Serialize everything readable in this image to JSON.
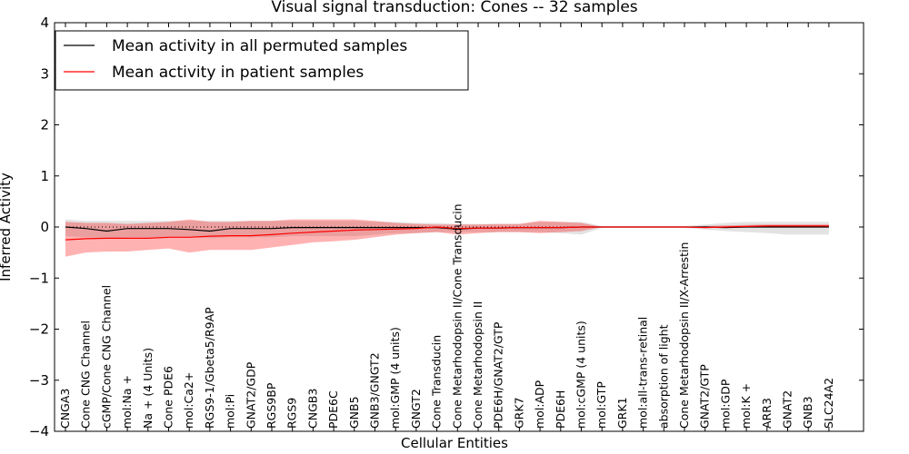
{
  "chart_data": {
    "type": "line",
    "title": "Visual signal transduction: Cones -- 32 samples",
    "xlabel": "Cellular Entities",
    "ylabel": "Inferred Activity",
    "ylim": [
      -4,
      4
    ],
    "yticks": [
      -4,
      -3,
      -2,
      -1,
      0,
      1,
      2,
      3,
      4
    ],
    "ytick_labels": [
      "−4",
      "−3",
      "−2",
      "−1",
      "0",
      "1",
      "2",
      "3",
      "4"
    ],
    "legend_position": "top-left",
    "categories": [
      "CNGA3",
      "Cone CNG Channel",
      "cGMP/Cone CNG Channel",
      "mol:Na +",
      "Na + (4 Units)",
      "Cone PDE6",
      "mol:Ca2+",
      "RGS9-1/Gbeta5/R9AP",
      "mol:Pi",
      "GNAT2/GDP",
      "RGS9BP",
      "RGS9",
      "CNGB3",
      "PDE6C",
      "GNB5",
      "GNB3/GNGT2",
      "mol:GMP (4 units)",
      "GNGT2",
      "Cone Transducin",
      "Cone Metarhodopsin II/Cone Transducin",
      "Cone Metarhodopsin II",
      "PDE6H/GNAT2/GTP",
      "GRK7",
      "mol:ADP",
      "PDE6H",
      "mol:cGMP (4 units)",
      "mol:GTP",
      "GRK1",
      "mol:all-trans-retinal",
      "absorption of light",
      "Cone Metarhodopsin II/X-Arrestin",
      "GNAT2/GTP",
      "mol:GDP",
      "mol:K +",
      "ARR3",
      "GNAT2",
      "GNB3",
      "SLC24A2"
    ],
    "series": [
      {
        "name": "Mean activity in all permuted samples",
        "color": "#000000",
        "band_color": "#b0b0b0",
        "values": [
          0.0,
          -0.03,
          -0.08,
          -0.03,
          -0.03,
          -0.03,
          -0.05,
          -0.08,
          -0.03,
          -0.03,
          -0.03,
          -0.01,
          -0.01,
          -0.01,
          -0.01,
          -0.01,
          -0.01,
          -0.01,
          -0.01,
          -0.04,
          -0.02,
          -0.02,
          -0.01,
          -0.01,
          -0.01,
          0.0,
          0.0,
          0.0,
          0.0,
          0.0,
          0.0,
          0.0,
          -0.01,
          0.0,
          0.0,
          0.0,
          0.0,
          0.0
        ],
        "lower": [
          -0.18,
          -0.2,
          -0.22,
          -0.2,
          -0.2,
          -0.2,
          -0.2,
          -0.22,
          -0.2,
          -0.2,
          -0.2,
          -0.18,
          -0.18,
          -0.18,
          -0.18,
          -0.15,
          -0.12,
          -0.12,
          -0.1,
          -0.1,
          -0.1,
          -0.1,
          -0.1,
          -0.1,
          -0.12,
          -0.15,
          -0.02,
          -0.02,
          -0.02,
          -0.02,
          -0.02,
          -0.05,
          -0.08,
          -0.1,
          -0.12,
          -0.15,
          -0.15,
          -0.15
        ],
        "upper": [
          0.15,
          0.12,
          0.12,
          0.12,
          0.12,
          0.12,
          0.12,
          0.12,
          0.12,
          0.12,
          0.12,
          0.12,
          0.12,
          0.12,
          0.12,
          0.1,
          0.1,
          0.08,
          0.08,
          0.06,
          0.06,
          0.06,
          0.06,
          0.1,
          0.1,
          0.1,
          0.02,
          0.02,
          0.02,
          0.02,
          0.02,
          0.05,
          0.08,
          0.1,
          0.1,
          0.1,
          0.1,
          0.1
        ]
      },
      {
        "name": "Mean activity in patient samples",
        "color": "#ff0000",
        "band_color": "#ff0000",
        "values": [
          -0.25,
          -0.23,
          -0.22,
          -0.22,
          -0.22,
          -0.2,
          -0.2,
          -0.18,
          -0.17,
          -0.17,
          -0.15,
          -0.12,
          -0.1,
          -0.08,
          -0.06,
          -0.05,
          -0.04,
          -0.03,
          0.0,
          -0.03,
          -0.02,
          -0.02,
          -0.01,
          -0.01,
          -0.01,
          0.0,
          0.0,
          0.0,
          0.0,
          0.0,
          0.0,
          -0.01,
          0.0,
          0.01,
          0.02,
          0.02,
          0.02,
          0.02
        ],
        "lower": [
          -0.58,
          -0.5,
          -0.48,
          -0.48,
          -0.45,
          -0.42,
          -0.5,
          -0.45,
          -0.45,
          -0.45,
          -0.4,
          -0.35,
          -0.3,
          -0.28,
          -0.25,
          -0.2,
          -0.15,
          -0.12,
          -0.1,
          -0.15,
          -0.12,
          -0.1,
          -0.1,
          -0.12,
          -0.1,
          -0.08,
          0.0,
          0.0,
          0.0,
          0.0,
          0.0,
          -0.02,
          -0.01,
          0.0,
          0.0,
          0.0,
          0.0,
          0.0
        ],
        "upper": [
          0.1,
          0.08,
          0.08,
          0.06,
          0.08,
          0.1,
          0.15,
          0.1,
          0.1,
          0.12,
          0.12,
          0.15,
          0.15,
          0.15,
          0.15,
          0.12,
          0.08,
          0.06,
          0.05,
          0.05,
          0.05,
          0.06,
          0.06,
          0.12,
          0.1,
          0.08,
          0.0,
          0.0,
          0.0,
          0.0,
          0.0,
          0.02,
          0.03,
          0.04,
          0.05,
          0.05,
          0.05,
          0.05
        ]
      }
    ]
  }
}
